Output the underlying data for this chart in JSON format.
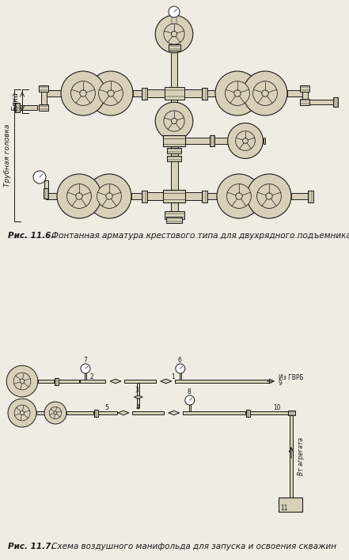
{
  "bg_color": "#f0ece4",
  "fig_width": 4.41,
  "fig_height": 7.08,
  "dpi": 100,
  "caption1_bold": "Рис. 11.6.",
  "caption1_rest": " Фонтанная арматура крестового типа для двухрядного подъемника",
  "caption2_bold": "Рис. 11.7.",
  "caption2_rest": " Схема воздушного манифольда для запуска и освоения скважин",
  "label_elka": "Елка",
  "label_trub": "Трубная головка",
  "label_iz_gvrb": "Из ГВРБ",
  "label_9": "9",
  "label_ot_agregata": "Вт агрегата",
  "line_color": "#1a1a1a",
  "fill_color": "#d8d0b8",
  "white": "#ffffff",
  "pipe_color": "#b8b0a0"
}
